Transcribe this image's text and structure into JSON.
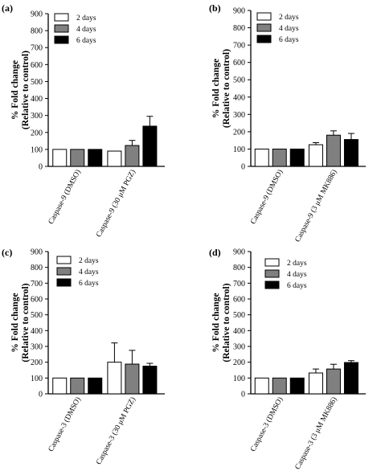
{
  "chart_data": [
    {
      "type": "bar",
      "panel": "(a)",
      "ylabel_line1": "% Fold change",
      "ylabel_line2": "(Relative to control)",
      "ylim": [
        0,
        900
      ],
      "yticks": [
        "0",
        "100",
        "200",
        "300",
        "400",
        "500",
        "600",
        "700",
        "800",
        "900"
      ],
      "categories": [
        "Caspase-9 (DMSO)",
        "Caspase-9 (30 μM PGZ)"
      ],
      "series": [
        {
          "name": "2 days",
          "color": "#ffffff",
          "values": [
            100,
            90
          ],
          "errors": [
            0,
            0
          ]
        },
        {
          "name": "4 days",
          "color": "#808080",
          "values": [
            100,
            123
          ],
          "errors": [
            0,
            30
          ]
        },
        {
          "name": "6 days",
          "color": "#000000",
          "values": [
            100,
            237
          ],
          "errors": [
            0,
            58
          ]
        }
      ]
    },
    {
      "type": "bar",
      "panel": "(b)",
      "ylabel_line1": "% Fold change",
      "ylabel_line2": "(Relative to control)",
      "ylim": [
        0,
        900
      ],
      "yticks": [
        "0",
        "100",
        "200",
        "300",
        "400",
        "500",
        "600",
        "700",
        "800",
        "900"
      ],
      "categories": [
        "Caspase-9 (DMSO)",
        "Caspase-9 (3 μM MK886)"
      ],
      "series": [
        {
          "name": "2 days",
          "color": "#ffffff",
          "values": [
            100,
            125
          ],
          "errors": [
            0,
            12
          ]
        },
        {
          "name": "4 days",
          "color": "#808080",
          "values": [
            100,
            180
          ],
          "errors": [
            0,
            25
          ]
        },
        {
          "name": "6 days",
          "color": "#000000",
          "values": [
            100,
            155
          ],
          "errors": [
            0,
            35
          ]
        }
      ]
    },
    {
      "type": "bar",
      "panel": "(c)",
      "ylabel_line1": "% Fold change",
      "ylabel_line2": "(Relative to control)",
      "ylim": [
        0,
        900
      ],
      "yticks": [
        "0",
        "100",
        "200",
        "300",
        "400",
        "500",
        "600",
        "700",
        "800",
        "900"
      ],
      "categories": [
        "Caspase-3 (DMSO)",
        "Caspase-3 (30 μM PGZ)"
      ],
      "series": [
        {
          "name": "2 days",
          "color": "#ffffff",
          "values": [
            100,
            200
          ],
          "errors": [
            0,
            122
          ]
        },
        {
          "name": "4 days",
          "color": "#808080",
          "values": [
            100,
            188
          ],
          "errors": [
            0,
            87
          ]
        },
        {
          "name": "6 days",
          "color": "#000000",
          "values": [
            100,
            175
          ],
          "errors": [
            0,
            18
          ]
        }
      ]
    },
    {
      "type": "bar",
      "panel": "(d)",
      "ylabel_line1": "% Fold change",
      "ylabel_line2": "(Relative to control)",
      "ylim": [
        0,
        900
      ],
      "yticks": [
        "0",
        "100",
        "200",
        "300",
        "400",
        "500",
        "600",
        "700",
        "800",
        "900"
      ],
      "categories": [
        "Caspase-3 (DMSO)",
        "Caspase-3 (3 μM MK886)"
      ],
      "series": [
        {
          "name": "2 days",
          "color": "#ffffff",
          "values": [
            100,
            132
          ],
          "errors": [
            0,
            25
          ]
        },
        {
          "name": "4 days",
          "color": "#808080",
          "values": [
            100,
            157
          ],
          "errors": [
            0,
            30
          ]
        },
        {
          "name": "6 days",
          "color": "#000000",
          "values": [
            100,
            198
          ],
          "errors": [
            0,
            12
          ]
        }
      ]
    }
  ]
}
